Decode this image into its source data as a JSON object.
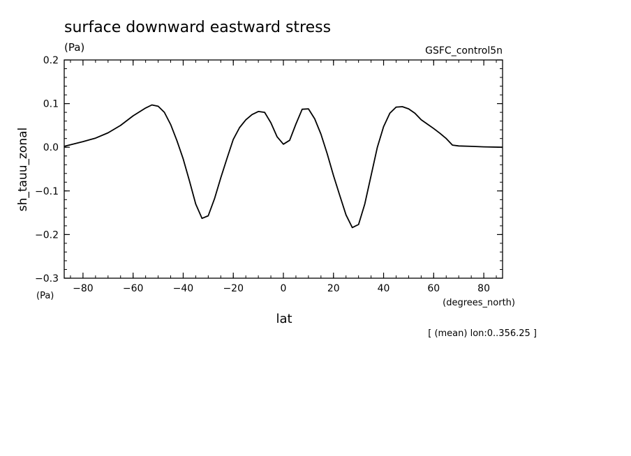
{
  "chart_data": {
    "type": "line",
    "title": "surface downward eastward stress",
    "y_units": "(Pa)",
    "dataset": "GSFC_control5n",
    "ylabel": "sh_tauu_zonal",
    "y_units_bottom": "(Pa)",
    "xlabel": "lat",
    "x_units": "(degrees_north)",
    "footnote": "[ (mean) lon:0..356.25 ]",
    "xlim": [
      -87.5,
      87.5
    ],
    "ylim": [
      -0.3,
      0.2
    ],
    "x_ticks": [
      -80,
      -60,
      -40,
      -20,
      0,
      20,
      40,
      60,
      80
    ],
    "x_tick_labels": [
      "−80",
      "−60",
      "−40",
      "−20",
      "0",
      "20",
      "40",
      "60",
      "80"
    ],
    "y_ticks": [
      -0.3,
      -0.2,
      -0.1,
      0.0,
      0.1,
      0.2
    ],
    "y_tick_labels": [
      "−0.3",
      "−0.2",
      "−0.1",
      "0.0",
      "0.1",
      "0.2"
    ],
    "grid": false,
    "series": [
      {
        "x": [
          -87.5,
          -80,
          -75,
          -70,
          -65,
          -60,
          -55,
          -52.5,
          -50,
          -47.5,
          -45,
          -42.5,
          -40,
          -37.5,
          -35,
          -32.5,
          -30,
          -27.5,
          -25,
          -22.5,
          -20,
          -17.5,
          -15,
          -12.5,
          -10,
          -7.5,
          -5,
          -2.5,
          0,
          2.5,
          5,
          7.5,
          10,
          12.5,
          15,
          17.5,
          20,
          22.5,
          25,
          27.5,
          30,
          32.5,
          35,
          37.5,
          40,
          42.5,
          45,
          47.5,
          50,
          52.5,
          55,
          57.5,
          60,
          62.5,
          65,
          67.5,
          70,
          75,
          80,
          87.5
        ],
        "y": [
          0.002,
          0.013,
          0.021,
          0.033,
          0.05,
          0.072,
          0.09,
          0.097,
          0.094,
          0.08,
          0.052,
          0.015,
          -0.027,
          -0.077,
          -0.13,
          -0.163,
          -0.157,
          -0.118,
          -0.07,
          -0.025,
          0.018,
          0.045,
          0.063,
          0.075,
          0.082,
          0.08,
          0.056,
          0.024,
          0.007,
          0.016,
          0.053,
          0.087,
          0.088,
          0.065,
          0.03,
          -0.015,
          -0.065,
          -0.11,
          -0.155,
          -0.184,
          -0.177,
          -0.13,
          -0.065,
          0.0,
          0.047,
          0.078,
          0.092,
          0.093,
          0.088,
          0.078,
          0.063,
          0.053,
          0.043,
          0.032,
          0.02,
          0.005,
          0.003,
          0.002,
          0.001,
          0.0
        ]
      }
    ]
  },
  "colors": {
    "line": "#000000",
    "axis": "#000000",
    "background": "#ffffff"
  }
}
